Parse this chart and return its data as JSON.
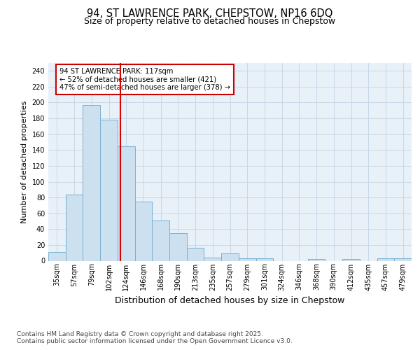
{
  "title_line1": "94, ST LAWRENCE PARK, CHEPSTOW, NP16 6DQ",
  "title_line2": "Size of property relative to detached houses in Chepstow",
  "xlabel": "Distribution of detached houses by size in Chepstow",
  "ylabel": "Number of detached properties",
  "bar_labels": [
    "35sqm",
    "57sqm",
    "79sqm",
    "102sqm",
    "124sqm",
    "146sqm",
    "168sqm",
    "190sqm",
    "213sqm",
    "235sqm",
    "257sqm",
    "279sqm",
    "301sqm",
    "324sqm",
    "346sqm",
    "368sqm",
    "390sqm",
    "412sqm",
    "435sqm",
    "457sqm",
    "479sqm"
  ],
  "bar_values": [
    11,
    84,
    197,
    178,
    145,
    75,
    51,
    35,
    16,
    4,
    9,
    3,
    3,
    0,
    0,
    2,
    0,
    2,
    0,
    3,
    3
  ],
  "bar_color": "#cce0f0",
  "bar_edge_color": "#7ab0d4",
  "grid_color": "#c8d8e8",
  "background_color": "#e8f0f8",
  "vline_color": "#dd0000",
  "vline_pos": 3.68,
  "annotation_text": "94 ST LAWRENCE PARK: 117sqm\n← 52% of detached houses are smaller (421)\n47% of semi-detached houses are larger (378) →",
  "annotation_box_color": "#cc0000",
  "ylim": [
    0,
    250
  ],
  "yticks": [
    0,
    20,
    40,
    60,
    80,
    100,
    120,
    140,
    160,
    180,
    200,
    220,
    240
  ],
  "footer": "Contains HM Land Registry data © Crown copyright and database right 2025.\nContains public sector information licensed under the Open Government Licence v3.0.",
  "title_fontsize": 10.5,
  "subtitle_fontsize": 9,
  "tick_fontsize": 7,
  "ylabel_fontsize": 8,
  "xlabel_fontsize": 9,
  "footer_fontsize": 6.5
}
